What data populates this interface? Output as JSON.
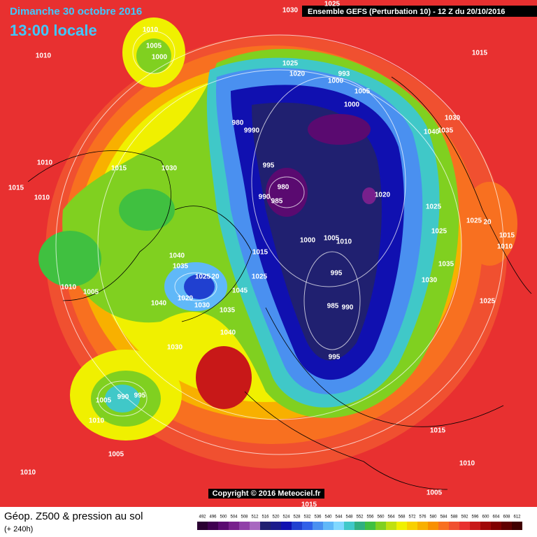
{
  "header": {
    "date": "Dimanche 30 octobre 2016",
    "time": "13:00 locale",
    "run": "Ensemble GEFS  (Perturbation 10)  -  12 Z du 20/10/2016"
  },
  "map": {
    "isobar_labels": [
      "1030",
      "1025",
      "1010",
      "1005",
      "1000",
      "1010",
      "1015",
      "1025",
      "1020",
      "993",
      "1000",
      "1005",
      "1000",
      "1030",
      "980",
      "9990",
      "1040",
      "1035",
      "1010",
      "1015",
      "1030",
      "995",
      "980",
      "1020",
      "1015",
      "1010",
      "990",
      "985",
      "1025",
      "1025",
      "1025",
      "20",
      "1015",
      "1010",
      "1000",
      "1005",
      "1010",
      "1040",
      "1015",
      "1035",
      "995",
      "1035",
      "1025",
      "20",
      "1025",
      "1030",
      "1045",
      "1010",
      "1005",
      "1020",
      "1040",
      "1030",
      "985",
      "990",
      "1025",
      "1035",
      "1040",
      "1030",
      "995",
      "1005",
      "990",
      "995",
      "1010",
      "1015",
      "1005",
      "1010",
      "1010",
      "1005",
      "1015"
    ],
    "copyright": "Copyright © 2016 Meteociel.fr"
  },
  "footer": {
    "title": "Géop. Z500 & pression au sol",
    "subtitle": "(+ 240h)"
  },
  "legend": {
    "values": [
      492,
      496,
      500,
      504,
      508,
      512,
      516,
      520,
      524,
      528,
      532,
      536,
      540,
      544,
      548,
      552,
      556,
      560,
      564,
      568,
      572,
      576,
      580,
      584,
      588,
      592,
      596,
      600,
      604,
      608,
      612
    ],
    "colors": [
      "#2a0032",
      "#3f0050",
      "#5a0a70",
      "#78208c",
      "#9040a8",
      "#a868c0",
      "#202070",
      "#1a1a8c",
      "#1010b0",
      "#2040d0",
      "#3060e8",
      "#4a90f0",
      "#60b8f8",
      "#80d8ff",
      "#40c8c8",
      "#30b080",
      "#40c040",
      "#80d020",
      "#c0e010",
      "#f0f000",
      "#f8d000",
      "#f8b000",
      "#f89000",
      "#f87020",
      "#f05030",
      "#e83030",
      "#c81818",
      "#a00808",
      "#800000",
      "#600000",
      "#400000"
    ]
  }
}
